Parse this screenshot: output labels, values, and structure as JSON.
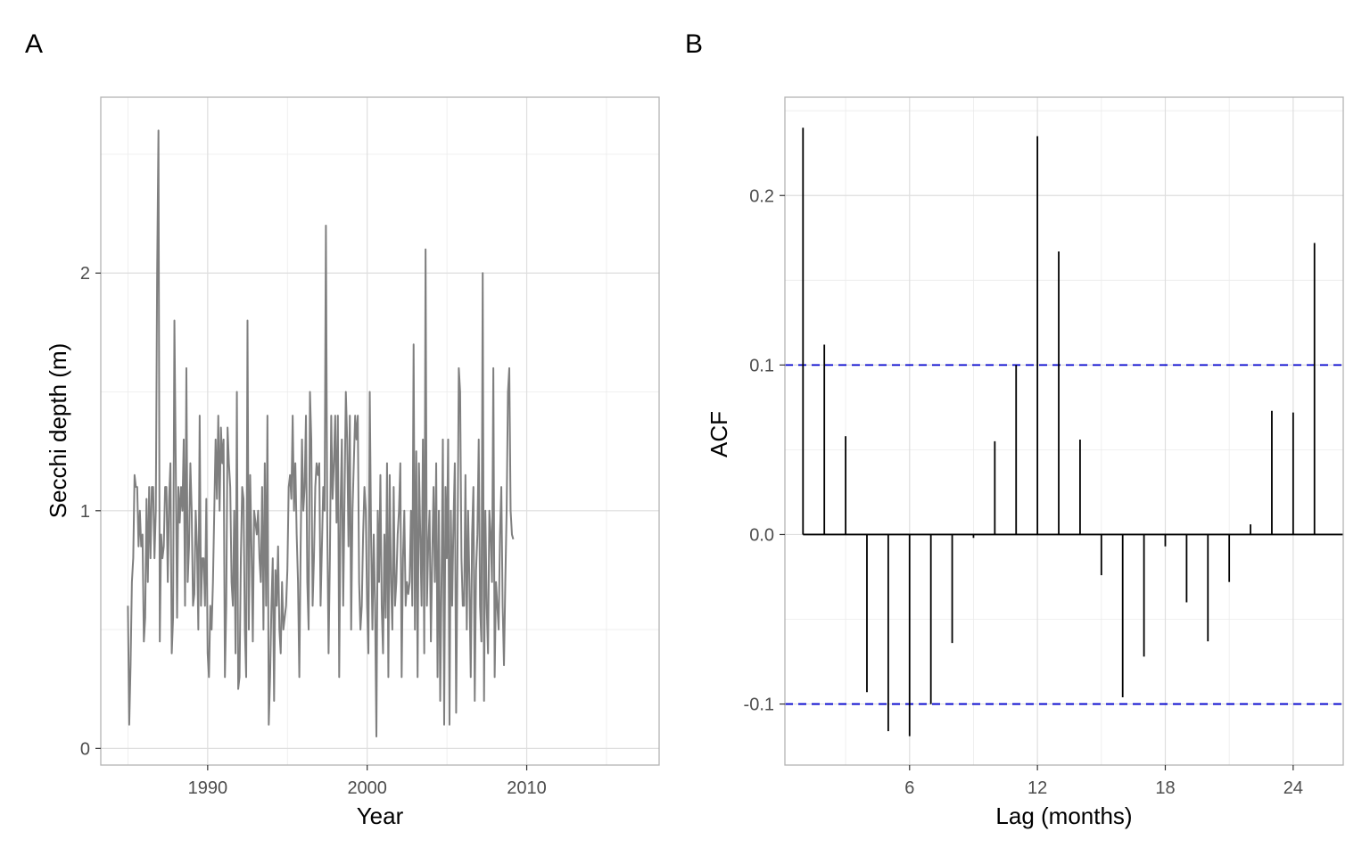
{
  "chart_data": [
    {
      "panel": "A",
      "type": "line",
      "title": "",
      "xlabel": "Year",
      "ylabel": "Secchi depth (m)",
      "xlim": [
        1983.3,
        2018.3
      ],
      "ylim": [
        -0.07,
        2.74
      ],
      "xticks": [
        1990,
        2000,
        2010
      ],
      "yticks": [
        0,
        1,
        2
      ],
      "xtick_labels": [
        "1990",
        "2000",
        "2010"
      ],
      "ytick_labels": [
        "0",
        "1",
        "2"
      ],
      "grid": true,
      "color": "#7f7f7f",
      "x_start": 1985.0,
      "x_step": 0.0833,
      "values": [
        0.6,
        0.1,
        0.35,
        0.7,
        0.8,
        1.15,
        1.1,
        1.1,
        0.85,
        1.0,
        0.85,
        0.9,
        0.45,
        0.55,
        1.05,
        0.7,
        1.1,
        0.8,
        1.1,
        1.1,
        0.8,
        1.0,
        2.0,
        2.6,
        0.45,
        0.9,
        0.8,
        0.85,
        1.1,
        1.1,
        0.7,
        1.05,
        1.2,
        0.4,
        0.55,
        1.8,
        1.2,
        0.55,
        1.1,
        0.95,
        1.1,
        1.0,
        1.3,
        0.6,
        1.6,
        0.7,
        0.85,
        1.2,
        1.0,
        0.6,
        0.65,
        1.0,
        0.85,
        0.5,
        1.4,
        0.6,
        0.8,
        0.8,
        0.6,
        1.05,
        0.4,
        0.3,
        0.6,
        0.5,
        0.7,
        1.0,
        1.3,
        1.05,
        1.4,
        1.0,
        1.35,
        1.2,
        1.3,
        0.3,
        0.6,
        1.35,
        1.2,
        1.1,
        0.7,
        0.6,
        1.0,
        0.4,
        1.5,
        0.25,
        0.3,
        0.8,
        1.1,
        1.05,
        0.5,
        0.3,
        1.8,
        0.5,
        1.15,
        0.85,
        0.45,
        1.0,
        0.95,
        0.9,
        1.0,
        0.8,
        0.7,
        1.1,
        0.5,
        1.2,
        0.6,
        1.4,
        0.1,
        0.3,
        0.6,
        0.8,
        0.2,
        0.75,
        0.6,
        0.85,
        0.5,
        0.4,
        0.7,
        0.5,
        0.55,
        0.6,
        0.75,
        1.1,
        1.15,
        1.05,
        1.4,
        1.0,
        1.2,
        0.9,
        0.7,
        0.3,
        0.85,
        1.3,
        1.0,
        1.1,
        1.4,
        0.7,
        0.5,
        1.5,
        1.3,
        0.6,
        0.8,
        1.1,
        1.2,
        1.15,
        1.2,
        0.6,
        0.85,
        1.1,
        1.0,
        2.2,
        0.95,
        0.4,
        0.8,
        1.4,
        1.05,
        1.2,
        1.4,
        0.95,
        1.4,
        0.3,
        1.0,
        1.3,
        0.6,
        1.05,
        1.5,
        1.3,
        0.85,
        1.4,
        0.5,
        1.0,
        1.2,
        1.4,
        1.3,
        1.4,
        0.7,
        0.5,
        0.6,
        0.9,
        1.1,
        1.0,
        0.6,
        0.4,
        1.5,
        0.9,
        0.5,
        0.9,
        0.6,
        0.05,
        1.0,
        0.7,
        1.15,
        0.6,
        0.4,
        0.9,
        0.55,
        1.2,
        0.3,
        1.15,
        0.7,
        0.5,
        1.1,
        0.6,
        0.7,
        0.9,
        1.0,
        1.2,
        0.3,
        0.8,
        1.0,
        0.6,
        0.7,
        0.65,
        0.7,
        1.0,
        0.6,
        1.7,
        0.5,
        1.25,
        0.3,
        1.2,
        0.9,
        0.6,
        1.3,
        0.4,
        2.1,
        0.6,
        0.85,
        1.0,
        0.45,
        0.8,
        1.1,
        0.7,
        1.2,
        0.3,
        1.0,
        0.2,
        0.7,
        1.3,
        0.1,
        1.1,
        0.8,
        1.3,
        0.1,
        1.0,
        0.6,
        0.95,
        1.2,
        0.15,
        0.8,
        1.6,
        1.5,
        0.8,
        0.6,
        0.6,
        1.15,
        0.5,
        1.0,
        0.7,
        0.3,
        0.9,
        1.1,
        0.2,
        0.75,
        0.9,
        1.3,
        0.6,
        0.45,
        2.0,
        0.2,
        1.0,
        0.6,
        0.4,
        1.0,
        0.9,
        0.7,
        1.6,
        0.3,
        0.7,
        0.6,
        0.5,
        0.9,
        1.1,
        0.6,
        0.35,
        0.7,
        1.0,
        1.5,
        1.6,
        1.0,
        0.9,
        0.88
      ]
    },
    {
      "panel": "B",
      "type": "bar",
      "title": "",
      "xlabel": "Lag (months)",
      "ylabel": "ACF",
      "xlim": [
        0.15,
        26.35
      ],
      "ylim": [
        -0.136,
        0.258
      ],
      "xticks": [
        6,
        12,
        18,
        24
      ],
      "yticks": [
        -0.1,
        0.0,
        0.1,
        0.2
      ],
      "xtick_labels": [
        "6",
        "12",
        "18",
        "24"
      ],
      "ytick_labels": [
        "-0.1",
        "0.0",
        "0.1",
        "0.2"
      ],
      "grid": true,
      "color": "#000000",
      "confidence_color": "#0000cc",
      "confidence_bounds": [
        0.1,
        -0.1
      ],
      "lags": [
        1,
        2,
        3,
        4,
        5,
        6,
        7,
        8,
        9,
        10,
        11,
        12,
        13,
        14,
        15,
        16,
        17,
        18,
        19,
        20,
        21,
        22,
        23,
        24,
        25
      ],
      "values": [
        0.24,
        0.112,
        0.058,
        -0.093,
        -0.116,
        -0.119,
        -0.1,
        -0.064,
        -0.002,
        0.055,
        0.1,
        0.235,
        0.167,
        0.056,
        -0.024,
        -0.096,
        -0.072,
        -0.007,
        -0.04,
        -0.063,
        -0.028,
        0.006,
        0.073,
        0.072,
        0.172
      ]
    }
  ],
  "panel_tags": [
    "A",
    "B"
  ]
}
